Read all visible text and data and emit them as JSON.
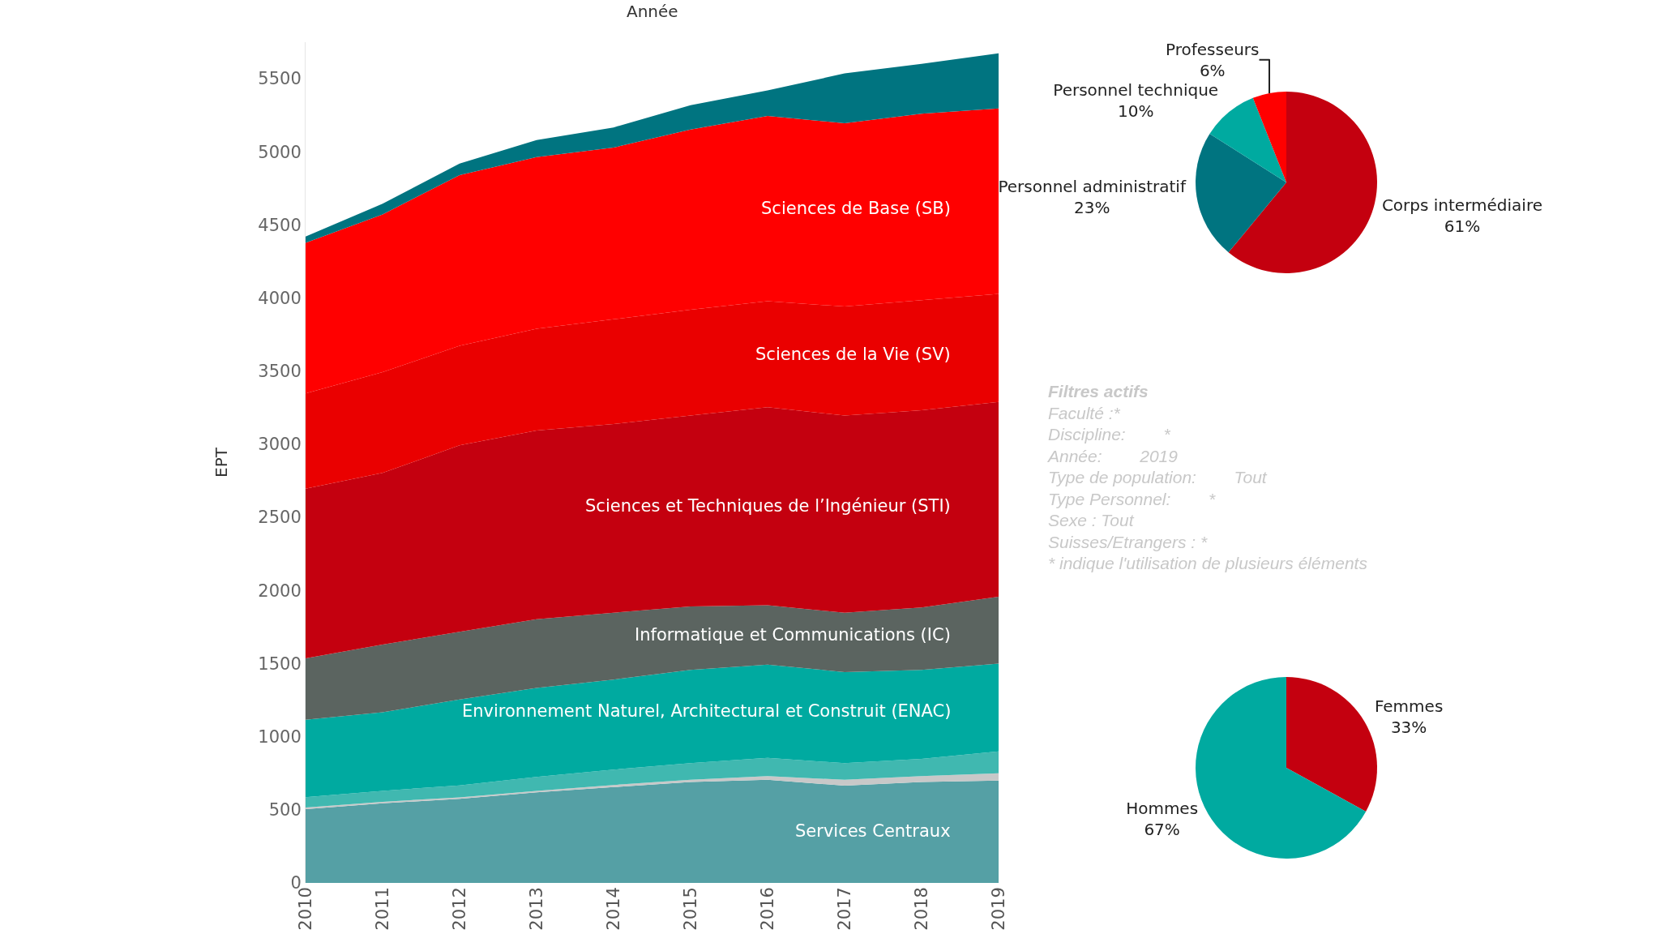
{
  "chart_data": [
    {
      "type": "area",
      "stacked": true,
      "xlabel": "Année",
      "ylabel": "EPT",
      "categories": [
        "2010",
        "2011",
        "2012",
        "2013",
        "2014",
        "2015",
        "2016",
        "2017",
        "2018",
        "2019"
      ],
      "ylim": [
        0,
        5750
      ],
      "yticks": [
        0,
        500,
        1000,
        1500,
        2000,
        2500,
        3000,
        3500,
        4000,
        4500,
        5000,
        5500
      ],
      "grid": false,
      "legend": false,
      "series": [
        {
          "name": "Services Centraux",
          "color": "#55a0a5",
          "values": [
            505,
            545,
            575,
            620,
            655,
            690,
            705,
            665,
            690,
            700
          ]
        },
        {
          "color": "#c8c8c8",
          "values": [
            10,
            10,
            10,
            10,
            15,
            15,
            25,
            40,
            40,
            50
          ]
        },
        {
          "color": "#40b8b0",
          "values": [
            72,
            75,
            82,
            95,
            105,
            114,
            125,
            114,
            118,
            150
          ]
        },
        {
          "name": "Environnement Naturel, Architectural et Construit (ENAC)",
          "color": "#00aaa0",
          "values": [
            529,
            537,
            587,
            608,
            616,
            638,
            638,
            623,
            609,
            600
          ]
        },
        {
          "name": "Informatique et Communications (IC)",
          "color": "#5b6460",
          "values": [
            420,
            463,
            463,
            471,
            457,
            434,
            406,
            406,
            427,
            457
          ]
        },
        {
          "name": "Sciences et Techniques de l’Ingénieur (STI)",
          "color": "#c4000f",
          "values": [
            1160,
            1174,
            1276,
            1290,
            1290,
            1305,
            1355,
            1348,
            1348,
            1333
          ]
        },
        {
          "name": "Sciences de la Vie (SV)",
          "color": "#ea0000",
          "values": [
            652,
            689,
            681,
            696,
            717,
            724,
            724,
            746,
            754,
            739
          ]
        },
        {
          "name": "Sciences de Base (SB)",
          "color": "#ff0000",
          "values": [
            1029,
            1079,
            1167,
            1174,
            1174,
            1232,
            1268,
            1254,
            1275,
            1268
          ]
        },
        {
          "color": "#007480",
          "values": [
            43,
            73,
            79,
            116,
            138,
            167,
            174,
            340,
            340,
            377
          ]
        }
      ]
    },
    {
      "type": "pie",
      "categories": [
        "Corps intermédiaire",
        "Personnel administratif",
        "Personnel technique",
        "Professeurs"
      ],
      "values": [
        61,
        23,
        10,
        6
      ],
      "colors": [
        "#c4000f",
        "#007480",
        "#00aaa0",
        "#ff0000"
      ],
      "value_labels": [
        "61%",
        "23%",
        "10%",
        "6%"
      ],
      "legend": false
    },
    {
      "type": "other",
      "title": "Filtres actifs",
      "annotations": [
        "Faculté :*",
        "Discipline:        *",
        "Année:        2019",
        "Type de population:        Tout",
        "Type Personnel:        *",
        "Sexe : Tout",
        "Suisses/Etrangers : *",
        "* indique l'utilisation de plusieurs éléments"
      ]
    },
    {
      "type": "pie",
      "categories": [
        "Femmes",
        "Hommes"
      ],
      "values": [
        33,
        67
      ],
      "colors": [
        "#c4000f",
        "#00aaa0"
      ],
      "value_labels": [
        "33%",
        "67%"
      ],
      "legend": false
    }
  ]
}
